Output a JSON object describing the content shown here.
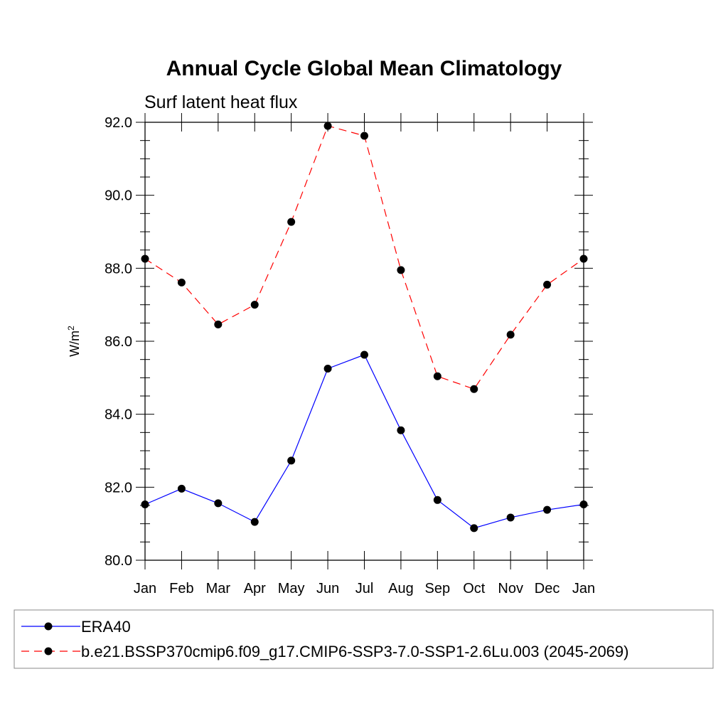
{
  "chart_data": {
    "type": "line",
    "title": "Annual Cycle Global Mean Climatology",
    "subtitle": "Surf latent heat flux",
    "ylabel": "W/m",
    "ylabel_superscript": "2",
    "xlabel": "",
    "ylim": [
      80.0,
      92.0
    ],
    "yticks": [
      "80.0",
      "82.0",
      "84.0",
      "86.0",
      "88.0",
      "90.0",
      "92.0"
    ],
    "categories": [
      "Jan",
      "Feb",
      "Mar",
      "Apr",
      "May",
      "Jun",
      "Jul",
      "Aug",
      "Sep",
      "Oct",
      "Nov",
      "Dec",
      "Jan"
    ],
    "series": [
      {
        "name": "ERA40",
        "color": "#0000ff",
        "dash": "solid",
        "values": [
          81.53,
          81.96,
          81.56,
          81.05,
          82.73,
          85.25,
          85.63,
          83.56,
          81.65,
          80.88,
          81.17,
          81.38,
          81.53
        ]
      },
      {
        "name": "b.e21.BSSP370cmip6.f09_g17.CMIP6-SSP3-7.0-SSP1-2.6Lu.003 (2045-2069)",
        "color": "#ff0000",
        "dash": "dashed",
        "values": [
          88.26,
          87.61,
          86.46,
          87.0,
          89.27,
          91.9,
          91.63,
          87.95,
          85.04,
          84.69,
          86.18,
          87.55,
          88.26
        ]
      }
    ],
    "legend_position": "bottom"
  }
}
